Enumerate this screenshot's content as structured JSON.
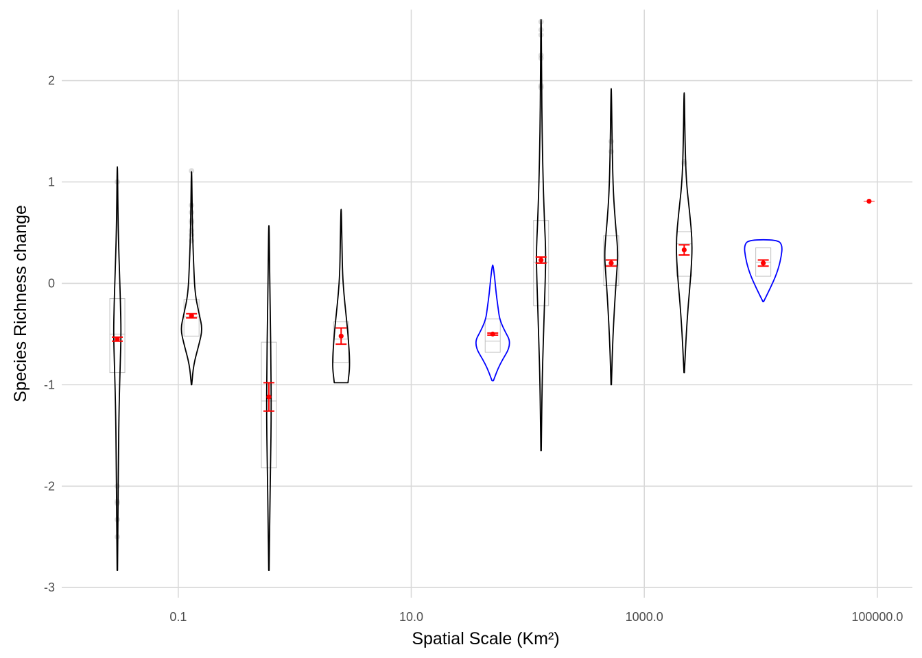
{
  "chart_data": {
    "type": "violin",
    "title": "",
    "xlabel": "Spatial Scale (Km²)",
    "ylabel": "Species Richness change",
    "x_scale": "log10",
    "xlim": [
      0.01,
      200000
    ],
    "ylim": [
      -3.1,
      2.7
    ],
    "x_ticks": [
      0.1,
      10,
      1000,
      100000
    ],
    "x_tick_labels": [
      "0.1",
      "10.0",
      "1000.0",
      "100000.0"
    ],
    "y_ticks": [
      -3,
      -2,
      -1,
      0,
      1,
      2
    ],
    "y_tick_labels": [
      "-3",
      "-2",
      "-1",
      "0",
      "1",
      "2"
    ],
    "grid": true,
    "legend": "none",
    "colors": {
      "grid": "#d9d9d9",
      "violin_default": "#000000",
      "violin_highlight": "#0000ff",
      "boxplot": "#bfbfbf",
      "outlier": "#b3b3b3",
      "mean": "#ff0000"
    },
    "groups": [
      {
        "x": 0.03,
        "highlight": false,
        "box": {
          "q1": -0.88,
          "median": -0.5,
          "q3": -0.15
        },
        "violin_range": [
          -2.83,
          1.15
        ],
        "violin_profile": [
          [
            -2.83,
            0.3
          ],
          [
            -2.3,
            0.9
          ],
          [
            -1.7,
            1.6
          ],
          [
            -1.2,
            2.6
          ],
          [
            -0.8,
            4.2
          ],
          [
            -0.5,
            5.5
          ],
          [
            -0.2,
            4.6
          ],
          [
            0.1,
            3.2
          ],
          [
            0.4,
            1.8
          ],
          [
            0.7,
            0.9
          ],
          [
            1.15,
            0.3
          ]
        ],
        "mean": -0.55,
        "mean_se": 0.02,
        "outliers": [
          -2.5,
          -2.33,
          -2.17,
          -2.15,
          -2.0,
          1.0
        ]
      },
      {
        "x": 0.13,
        "highlight": false,
        "box": {
          "q1": -0.52,
          "median": -0.33,
          "q3": -0.16
        },
        "violin_range": [
          -1.0,
          1.1
        ],
        "violin_profile": [
          [
            -1.0,
            0.3
          ],
          [
            -0.8,
            3
          ],
          [
            -0.6,
            11
          ],
          [
            -0.45,
            16
          ],
          [
            -0.3,
            11
          ],
          [
            -0.1,
            5
          ],
          [
            0.2,
            3
          ],
          [
            0.5,
            1.5
          ],
          [
            0.8,
            0.8
          ],
          [
            1.1,
            0.3
          ]
        ],
        "mean": -0.32,
        "mean_se": 0.02,
        "outliers": [
          0.42,
          0.48,
          0.52,
          0.6,
          0.62,
          0.7,
          0.77,
          1.11
        ]
      },
      {
        "x": 0.6,
        "highlight": false,
        "box": {
          "q1": -1.82,
          "median": -1.16,
          "q3": -0.58
        },
        "violin_range": [
          -2.83,
          0.57
        ],
        "violin_profile": [
          [
            -2.83,
            0.3
          ],
          [
            -2.3,
            1.2
          ],
          [
            -1.8,
            2.4
          ],
          [
            -1.3,
            3.4
          ],
          [
            -0.8,
            3.0
          ],
          [
            -0.4,
            2.2
          ],
          [
            0.0,
            1.3
          ],
          [
            0.3,
            0.8
          ],
          [
            0.57,
            0.3
          ]
        ],
        "mean": -1.12,
        "mean_se": 0.14,
        "outliers": []
      },
      {
        "x": 2.5,
        "highlight": false,
        "box": {
          "q1": -0.78,
          "median": -0.55,
          "q3": -0.38
        },
        "violin_range": [
          -0.98,
          0.73
        ],
        "violin_profile": [
          [
            -0.98,
            10
          ],
          [
            -0.8,
            13
          ],
          [
            -0.5,
            10
          ],
          [
            -0.3,
            7
          ],
          [
            -0.1,
            4
          ],
          [
            0.1,
            2
          ],
          [
            0.4,
            1.2
          ],
          [
            0.73,
            0.3
          ]
        ],
        "mean": -0.52,
        "mean_se": 0.08,
        "outliers": []
      },
      {
        "x": 50,
        "highlight": true,
        "box": {
          "q1": -0.68,
          "median": -0.57,
          "q3": -0.35
        },
        "violin_range": [
          -0.96,
          0.18
        ],
        "violin_profile": [
          [
            -0.96,
            1
          ],
          [
            -0.8,
            10
          ],
          [
            -0.6,
            28
          ],
          [
            -0.45,
            16
          ],
          [
            -0.35,
            10
          ],
          [
            -0.25,
            8
          ],
          [
            -0.1,
            5
          ],
          [
            0.05,
            3
          ],
          [
            0.18,
            0.5
          ]
        ],
        "mean": -0.5,
        "mean_se": 0.01,
        "outliers": []
      },
      {
        "x": 130,
        "highlight": false,
        "box": {
          "q1": -0.22,
          "median": 0.21,
          "q3": 0.62
        },
        "violin_range": [
          -1.65,
          2.6
        ],
        "violin_profile": [
          [
            -1.65,
            0.3
          ],
          [
            -1.0,
            1.5
          ],
          [
            -0.5,
            3.5
          ],
          [
            0.0,
            6
          ],
          [
            0.3,
            7
          ],
          [
            0.6,
            5
          ],
          [
            1.0,
            3
          ],
          [
            1.5,
            1.5
          ],
          [
            2.0,
            0.8
          ],
          [
            2.6,
            0.3
          ]
        ],
        "mean": 0.23,
        "mean_se": 0.03,
        "outliers": [
          1.93,
          1.95,
          2.22,
          2.25,
          2.45,
          2.5,
          2.58
        ]
      },
      {
        "x": 520,
        "highlight": false,
        "box": {
          "q1": -0.02,
          "median": 0.18,
          "q3": 0.47
        },
        "violin_range": [
          -1.0,
          1.92
        ],
        "violin_profile": [
          [
            -1.0,
            0.3
          ],
          [
            -0.6,
            2
          ],
          [
            -0.2,
            5
          ],
          [
            0.1,
            8
          ],
          [
            0.3,
            10
          ],
          [
            0.6,
            6
          ],
          [
            0.9,
            3
          ],
          [
            1.3,
            1.5
          ],
          [
            1.92,
            0.3
          ]
        ],
        "mean": 0.2,
        "mean_se": 0.03,
        "outliers": [
          1.3,
          1.4
        ]
      },
      {
        "x": 2200,
        "highlight": false,
        "box": {
          "q1": 0.07,
          "median": 0.39,
          "q3": 0.51
        },
        "violin_range": [
          -0.88,
          1.88
        ],
        "violin_profile": [
          [
            -0.88,
            0.3
          ],
          [
            -0.5,
            3
          ],
          [
            -0.2,
            6
          ],
          [
            0.1,
            10
          ],
          [
            0.4,
            12
          ],
          [
            0.7,
            8
          ],
          [
            1.0,
            3
          ],
          [
            1.4,
            1.2
          ],
          [
            1.88,
            0.3
          ]
        ],
        "mean": 0.33,
        "mean_se": 0.05,
        "outliers": [
          1.18,
          1.2
        ]
      },
      {
        "x": 10500,
        "highlight": true,
        "box": {
          "q1": 0.07,
          "median": 0.21,
          "q3": 0.35
        },
        "violin_range": [
          -0.18,
          0.43
        ],
        "violin_profile": [
          [
            -0.18,
            0.5
          ],
          [
            -0.05,
            10
          ],
          [
            0.1,
            20
          ],
          [
            0.25,
            26
          ],
          [
            0.38,
            28
          ],
          [
            0.43,
            20
          ]
        ],
        "mean": 0.2,
        "mean_se": 0.03,
        "outliers": []
      },
      {
        "x": 85000,
        "highlight": false,
        "box": null,
        "violin_range": null,
        "violin_profile": [],
        "mean": 0.81,
        "mean_se": 0.0,
        "outliers": []
      }
    ]
  }
}
